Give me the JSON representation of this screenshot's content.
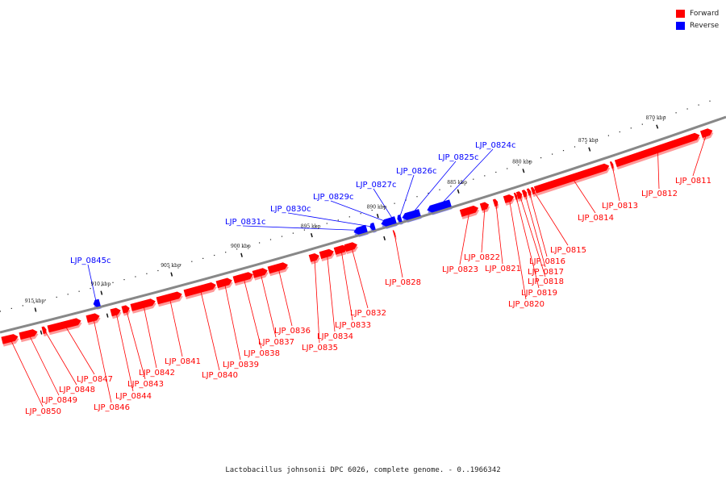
{
  "legend": {
    "forward_label": "Forward",
    "reverse_label": "Reverse",
    "forward_color": "#ff0000",
    "reverse_color": "#0000ff"
  },
  "caption": "Lactobacillus johnsonii DPC 6026, complete genome. - 0..1966342",
  "colors": {
    "backbone": "#888888",
    "forward": "#ff0000",
    "reverse": "#0000ff"
  },
  "kbp_labels": [
    "870 kbp",
    "875 kbp",
    "880 kbp",
    "885 kbp",
    "890 kbp",
    "895 kbp",
    "900 kbp",
    "905 kbp",
    "910 kbp",
    "915 kbp"
  ],
  "genes": [
    {
      "name": "LJP_0811",
      "strand": "forward"
    },
    {
      "name": "LJP_0812",
      "strand": "forward"
    },
    {
      "name": "LJP_0813",
      "strand": "forward"
    },
    {
      "name": "LJP_0814",
      "strand": "forward"
    },
    {
      "name": "LJP_0815",
      "strand": "forward"
    },
    {
      "name": "LJP_0816",
      "strand": "forward"
    },
    {
      "name": "LJP_0817",
      "strand": "forward"
    },
    {
      "name": "LJP_0818",
      "strand": "forward"
    },
    {
      "name": "LJP_0819",
      "strand": "forward"
    },
    {
      "name": "LJP_0820",
      "strand": "forward"
    },
    {
      "name": "LJP_0821",
      "strand": "forward"
    },
    {
      "name": "LJP_0822",
      "strand": "forward"
    },
    {
      "name": "LJP_0823",
      "strand": "forward"
    },
    {
      "name": "LJP_0824c",
      "strand": "reverse"
    },
    {
      "name": "LJP_0825c",
      "strand": "reverse"
    },
    {
      "name": "LJP_0826c",
      "strand": "reverse"
    },
    {
      "name": "LJP_0827c",
      "strand": "reverse"
    },
    {
      "name": "LJP_0828",
      "strand": "forward"
    },
    {
      "name": "LJP_0829c",
      "strand": "reverse"
    },
    {
      "name": "LJP_0830c",
      "strand": "reverse"
    },
    {
      "name": "LJP_0831c",
      "strand": "reverse"
    },
    {
      "name": "LJP_0832",
      "strand": "forward"
    },
    {
      "name": "LJP_0833",
      "strand": "forward"
    },
    {
      "name": "LJP_0834",
      "strand": "forward"
    },
    {
      "name": "LJP_0835",
      "strand": "forward"
    },
    {
      "name": "LJP_0836",
      "strand": "forward"
    },
    {
      "name": "LJP_0837",
      "strand": "forward"
    },
    {
      "name": "LJP_0838",
      "strand": "forward"
    },
    {
      "name": "LJP_0839",
      "strand": "forward"
    },
    {
      "name": "LJP_0840",
      "strand": "forward"
    },
    {
      "name": "LJP_0841",
      "strand": "forward"
    },
    {
      "name": "LJP_0842",
      "strand": "forward"
    },
    {
      "name": "LJP_0843",
      "strand": "forward"
    },
    {
      "name": "LJP_0844",
      "strand": "forward"
    },
    {
      "name": "LJP_0845c",
      "strand": "reverse"
    },
    {
      "name": "LJP_0846",
      "strand": "forward"
    },
    {
      "name": "LJP_0847",
      "strand": "forward"
    },
    {
      "name": "LJP_0848",
      "strand": "forward"
    },
    {
      "name": "LJP_0849",
      "strand": "forward"
    },
    {
      "name": "LJP_0850",
      "strand": "forward"
    }
  ]
}
